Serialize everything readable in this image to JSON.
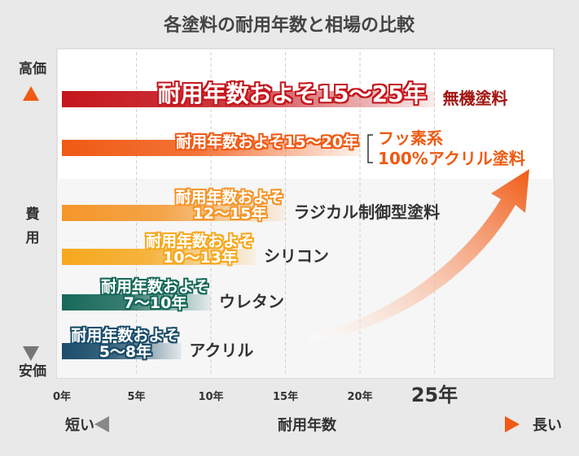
{
  "chart_data": {
    "type": "bar",
    "orientation": "horizontal",
    "title": "各塗料の耐用年数と相場の比較",
    "categories": [
      "無機塗料",
      "フッ素系\n100%アクリル塗料",
      "ラジカル制御型塗料",
      "シリコン",
      "ウレタン",
      "アクリル"
    ],
    "values": [
      25,
      20,
      15,
      13,
      10,
      8
    ],
    "value_labels": [
      "耐用年数およそ15〜25年",
      "耐用年数およそ15〜20年",
      "耐用年数およそ\n12〜15年",
      "耐用年数およそ\n10〜13年",
      "耐用年数およそ\n7〜10年",
      "耐用年数およそ\n5〜8年"
    ],
    "colors": [
      "#c4161c",
      "#f05a14",
      "#f5962a",
      "#f6a81e",
      "#17695a",
      "#1b4d6b"
    ],
    "category_colors": [
      "#a3140f",
      "#ee5a12",
      "#333333",
      "#333333",
      "#333333",
      "#333333"
    ],
    "xlim": [
      0,
      33
    ],
    "xticks": [
      {
        "value": 0,
        "label": "0年"
      },
      {
        "value": 5,
        "label": "5年"
      },
      {
        "value": 10,
        "label": "10年"
      },
      {
        "value": 15,
        "label": "15年"
      },
      {
        "value": 20,
        "label": "20年"
      },
      {
        "value": 25,
        "label": "25年"
      }
    ],
    "x_axis_label": "耐用年数",
    "x_axis_left": "短い",
    "x_axis_right": "長い",
    "y_axis_label": "費用",
    "y_axis_top": "高価",
    "y_axis_bottom": "安価",
    "grid": true
  }
}
